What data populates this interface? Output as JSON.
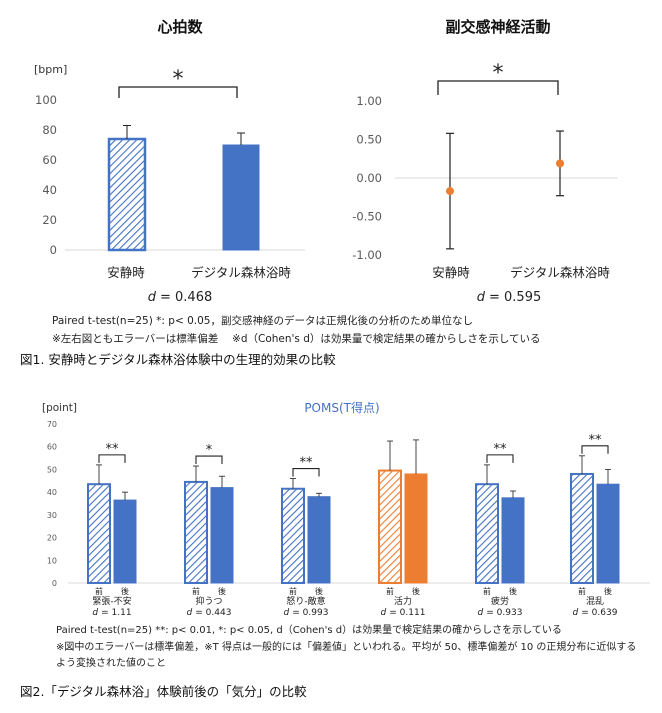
{
  "chart_data": [
    {
      "type": "bar",
      "title": "心拍数",
      "unit_label": "[bpm]",
      "categories": [
        "安静時",
        "デジタル森林浴時"
      ],
      "values": [
        74,
        70
      ],
      "errors": [
        9,
        8
      ],
      "ylim": [
        0,
        100
      ],
      "yticks": [
        "0",
        "20",
        "40",
        "60",
        "80",
        "100"
      ],
      "significance": "*",
      "effect_label": "d",
      "effect_value": "= 0.468"
    },
    {
      "type": "errorbar",
      "title": "副交感神経活動",
      "categories": [
        "安静時",
        "デジタル森林浴時"
      ],
      "values": [
        -0.17,
        0.19
      ],
      "errors": [
        0.75,
        0.42
      ],
      "ylim": [
        -1.0,
        1.0
      ],
      "yticks": [
        "1.00",
        "0.50",
        "0.00",
        "-0.50",
        "-1.00"
      ],
      "significance": "*",
      "effect_label": "d",
      "effect_value": "= 0.595"
    },
    {
      "type": "bar",
      "title": "POMS(T得点)",
      "unit_label": "[point]",
      "ylim": [
        0,
        70
      ],
      "yticks": [
        "0",
        "10",
        "20",
        "30",
        "40",
        "50",
        "60",
        "70"
      ],
      "pre_label": "前",
      "post_label": "後",
      "groups": [
        {
          "name": "緊張-不安",
          "pre": 43.5,
          "post": 36.5,
          "pre_err": 8.5,
          "post_err": 3.5,
          "sig": "**",
          "d": "= 1.11",
          "color": "blue"
        },
        {
          "name": "抑うつ",
          "pre": 44.5,
          "post": 42,
          "pre_err": 7,
          "post_err": 5,
          "sig": "*",
          "d": "= 0.443",
          "color": "blue"
        },
        {
          "name": "怒り-敵意",
          "pre": 41.5,
          "post": 38,
          "pre_err": 4.5,
          "post_err": 1.5,
          "sig": "**",
          "d": "= 0.993",
          "color": "blue"
        },
        {
          "name": "活力",
          "pre": 49.5,
          "post": 48,
          "pre_err": 13,
          "post_err": 15,
          "sig": "",
          "d": "= 0.111",
          "color": "orange"
        },
        {
          "name": "疲労",
          "pre": 43.5,
          "post": 37.5,
          "pre_err": 8.5,
          "post_err": 3,
          "sig": "**",
          "d": "= 0.933",
          "color": "blue"
        },
        {
          "name": "混乱",
          "pre": 48,
          "post": 43.5,
          "pre_err": 8,
          "post_err": 6.5,
          "sig": "**",
          "d": "= 0.639",
          "color": "blue"
        }
      ]
    }
  ],
  "colors": {
    "blue": "#4472C4",
    "orange": "#ED7D31",
    "axis": "#d9d9d9",
    "tick_text": "#595959",
    "dot": "#ED7D31"
  },
  "notes": {
    "fig1_line1": "Paired t-test(n=25) *: p< 0.05，副交感神経のデータは正規化後の分析のため単位なし",
    "fig1_line2": "※左右図ともエラーバーは標準偏差　 ※d（Cohen's d）は効果量で検定結果の確からしさを示している",
    "fig1_caption": "図1. 安静時とデジタル森林浴体験中の生理的効果の比較",
    "fig2_line1": "Paired t-test(n=25) **: p< 0.01, *: p< 0.05,  d（Cohen's d）は効果量で検定結果の確からしさを示している",
    "fig2_line2": "※図中のエラーバーは標準偏差，※T 得点は一般的には「偏差値」といわれる。平均が 50、標準偏差が 10 の正規分布に近似する",
    "fig2_line3": "よう変換された値のこと",
    "fig2_caption": "図2.「デジタル森林浴」体験前後の「気分」の比較"
  }
}
